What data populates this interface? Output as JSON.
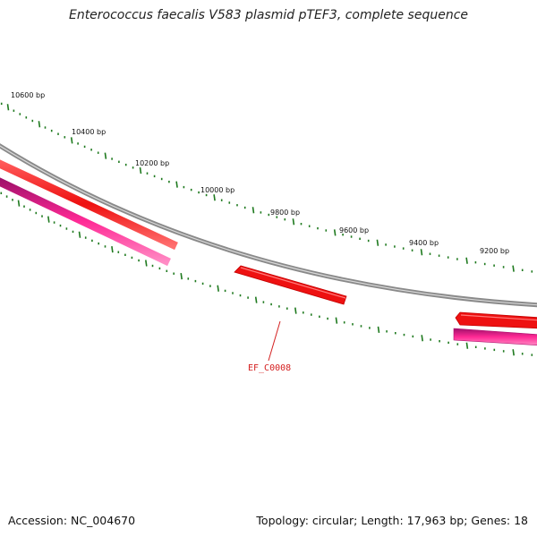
{
  "title": "Enterococcus faecalis V583 plasmid pTEF3, complete sequence",
  "footer": {
    "accession": "Accession: NC_004670",
    "summary": "Topology: circular; Length: 17,963 bp; Genes: 18"
  },
  "map": {
    "tick_labels": [
      "10600 bp",
      "10400 bp",
      "10200 bp",
      "10000 bp",
      "9800 bp",
      "9600 bp",
      "9400 bp",
      "9200 bp"
    ],
    "gene_label": "EF_C0008",
    "colors": {
      "backbone": "#8a8a8a",
      "forward_gene": "#ee1111",
      "reverse_gene": "#e8127a",
      "orf": "#ee1111",
      "tick": "#1f7a1f",
      "label_line": "#d42020"
    }
  }
}
